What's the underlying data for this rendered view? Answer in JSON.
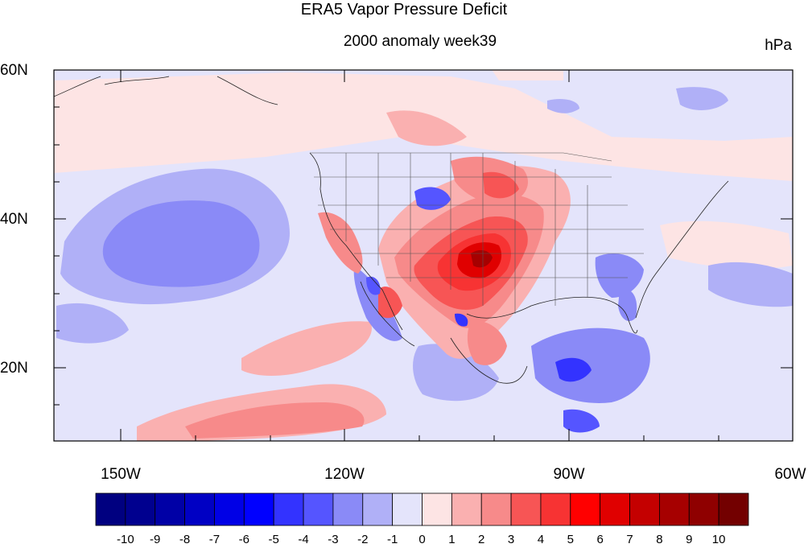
{
  "title": "ERA5 Vapor Pressure Deficit",
  "subtitle": "2000 anomaly week39",
  "units": "hPa",
  "lat_labels": [
    "60N",
    "40N",
    "20N"
  ],
  "lon_labels": [
    "150W",
    "120W",
    "90W",
    "60W"
  ],
  "colorbar": {
    "labels": [
      "-10",
      "-9",
      "-8",
      "-7",
      "-6",
      "-5",
      "-4",
      "-3",
      "-2",
      "-1",
      "0",
      "1",
      "2",
      "3",
      "4",
      "5",
      "6",
      "7",
      "8",
      "9",
      "10"
    ],
    "colors": [
      "#000080",
      "#00008f",
      "#0000a6",
      "#0000c4",
      "#0000e6",
      "#0000ff",
      "#3333ff",
      "#5555ff",
      "#8a8af7",
      "#b0b0f7",
      "#e4e4fb",
      "#fde4e4",
      "#fab0b0",
      "#f78a8a",
      "#f75555",
      "#f73333",
      "#ff0000",
      "#e00000",
      "#c40000",
      "#a60000",
      "#8f0000",
      "#730000"
    ]
  }
}
